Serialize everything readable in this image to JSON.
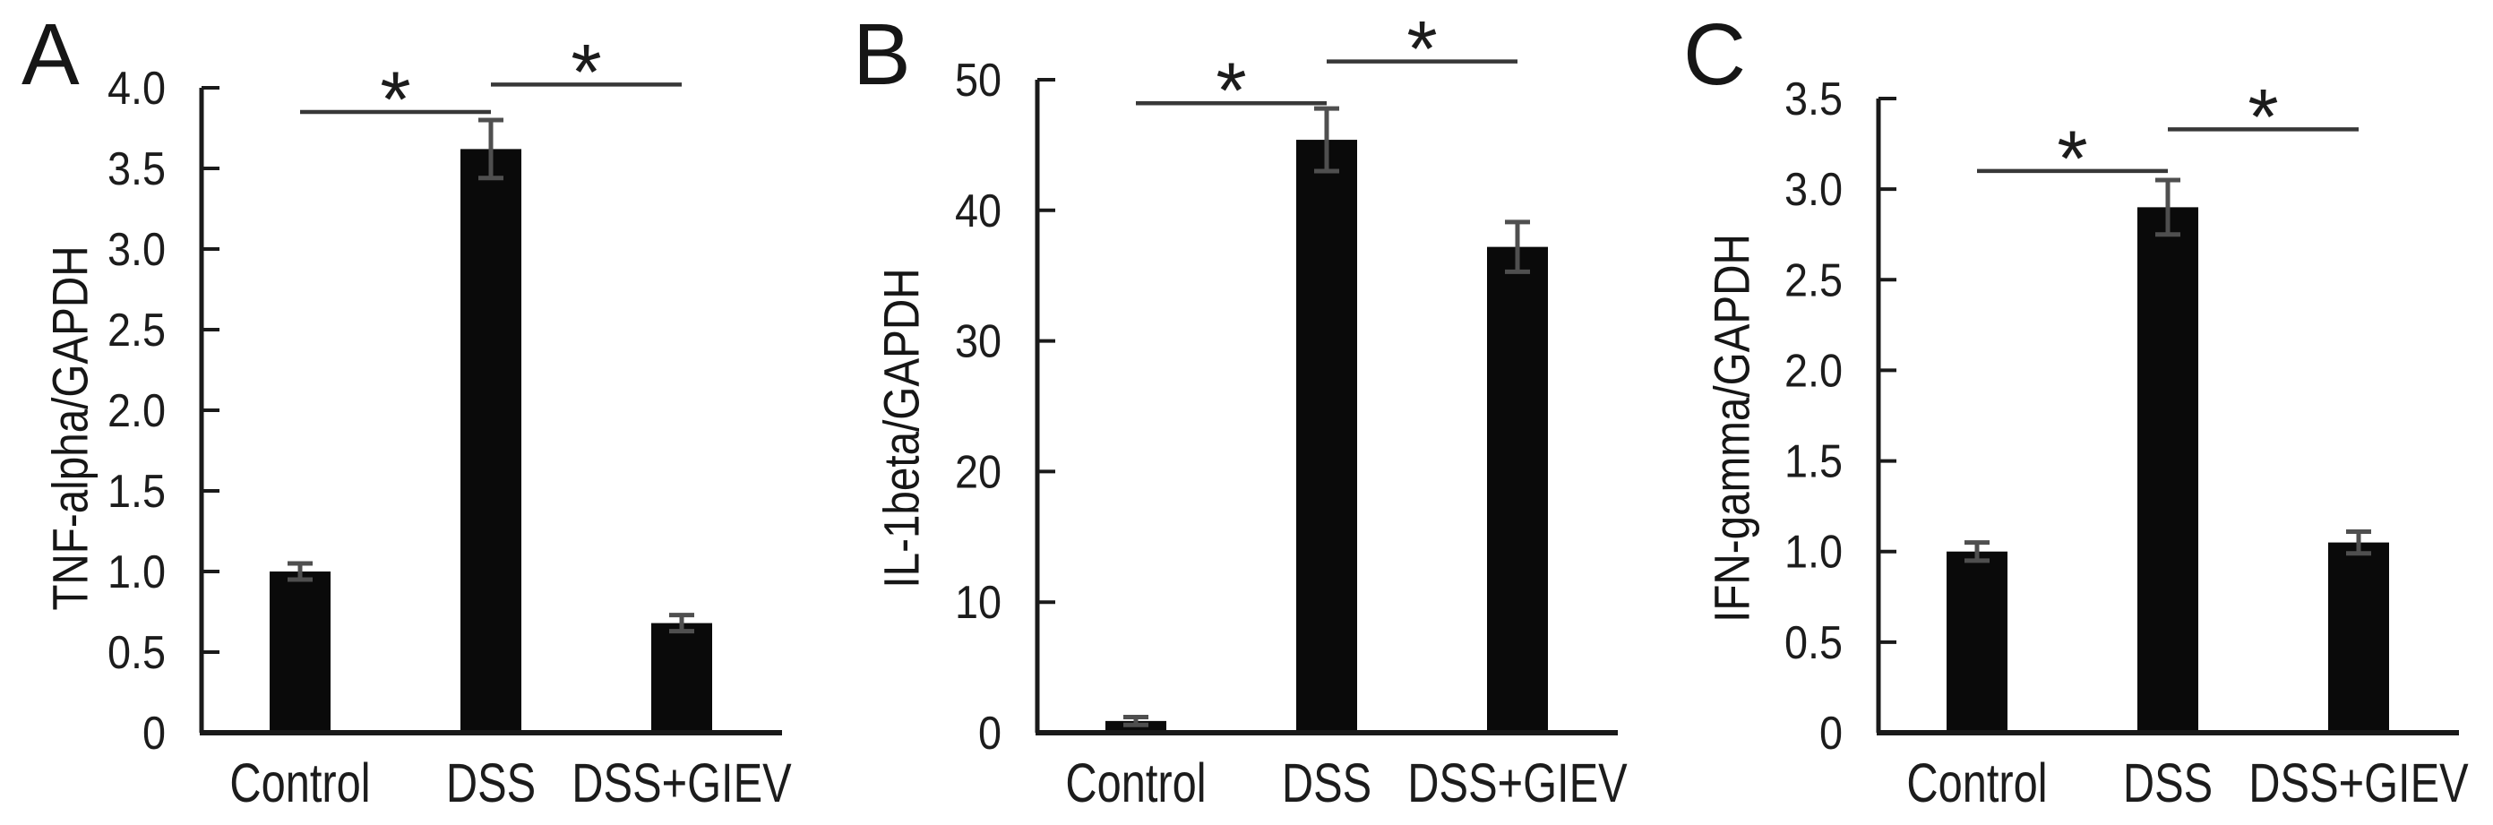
{
  "figure": {
    "background": "#ffffff",
    "bar_color": "#0a0a0a",
    "error_bar_color": "#4f4f4f",
    "axis_color": "#1a1a1a",
    "bracket_color": "#383838",
    "text_color": "#1c1c1c"
  },
  "chart_data": [
    {
      "type": "bar",
      "panel_label": "A",
      "title": "",
      "xlabel": "",
      "ylabel": "TNF-alpha/GAPDH",
      "categories": [
        "Control",
        "DSS",
        "DSS+GIEV"
      ],
      "values": [
        1.0,
        3.62,
        0.68
      ],
      "errors": [
        0.05,
        0.18,
        0.05
      ],
      "ylim": [
        0,
        4.0
      ],
      "ytick_step": 0.5,
      "yticks": [
        "0",
        "0.5",
        "1.0",
        "1.5",
        "2.0",
        "2.5",
        "3.0",
        "3.5",
        "4.0"
      ],
      "grid": false,
      "legend": false,
      "significance": [
        {
          "from": "Control",
          "to": "DSS",
          "label": "*",
          "y": 3.85
        },
        {
          "from": "DSS",
          "to": "DSS+GIEV",
          "label": "*",
          "y": 4.02
        }
      ]
    },
    {
      "type": "bar",
      "panel_label": "B",
      "title": "",
      "xlabel": "",
      "ylabel": "IL-1beta/GAPDH",
      "categories": [
        "Control",
        "DSS",
        "DSS+GIEV"
      ],
      "values": [
        0.9,
        45.4,
        37.2
      ],
      "errors": [
        0.3,
        2.4,
        1.9
      ],
      "ylim": [
        0,
        50
      ],
      "ytick_step": 10,
      "yticks": [
        "0",
        "10",
        "20",
        "30",
        "40",
        "50"
      ],
      "grid": false,
      "legend": false,
      "significance": [
        {
          "from": "Control",
          "to": "DSS",
          "label": "*",
          "y": 48.2
        },
        {
          "from": "DSS",
          "to": "DSS+GIEV",
          "label": "*",
          "y": 51.4
        }
      ]
    },
    {
      "type": "bar",
      "panel_label": "C",
      "title": "",
      "xlabel": "",
      "ylabel": "IFN-gamma/GAPDH",
      "categories": [
        "Control",
        "DSS",
        "DSS+GIEV"
      ],
      "values": [
        1.0,
        2.9,
        1.05
      ],
      "errors": [
        0.05,
        0.15,
        0.06
      ],
      "ylim": [
        0,
        3.5
      ],
      "ytick_step": 0.5,
      "yticks": [
        "0",
        "0.5",
        "1.0",
        "1.5",
        "2.0",
        "2.5",
        "3.0",
        "3.5"
      ],
      "grid": false,
      "legend": false,
      "significance": [
        {
          "from": "Control",
          "to": "DSS",
          "label": "*",
          "y": 3.1
        },
        {
          "from": "DSS",
          "to": "DSS+GIEV",
          "label": "*",
          "y": 3.33
        }
      ]
    }
  ]
}
